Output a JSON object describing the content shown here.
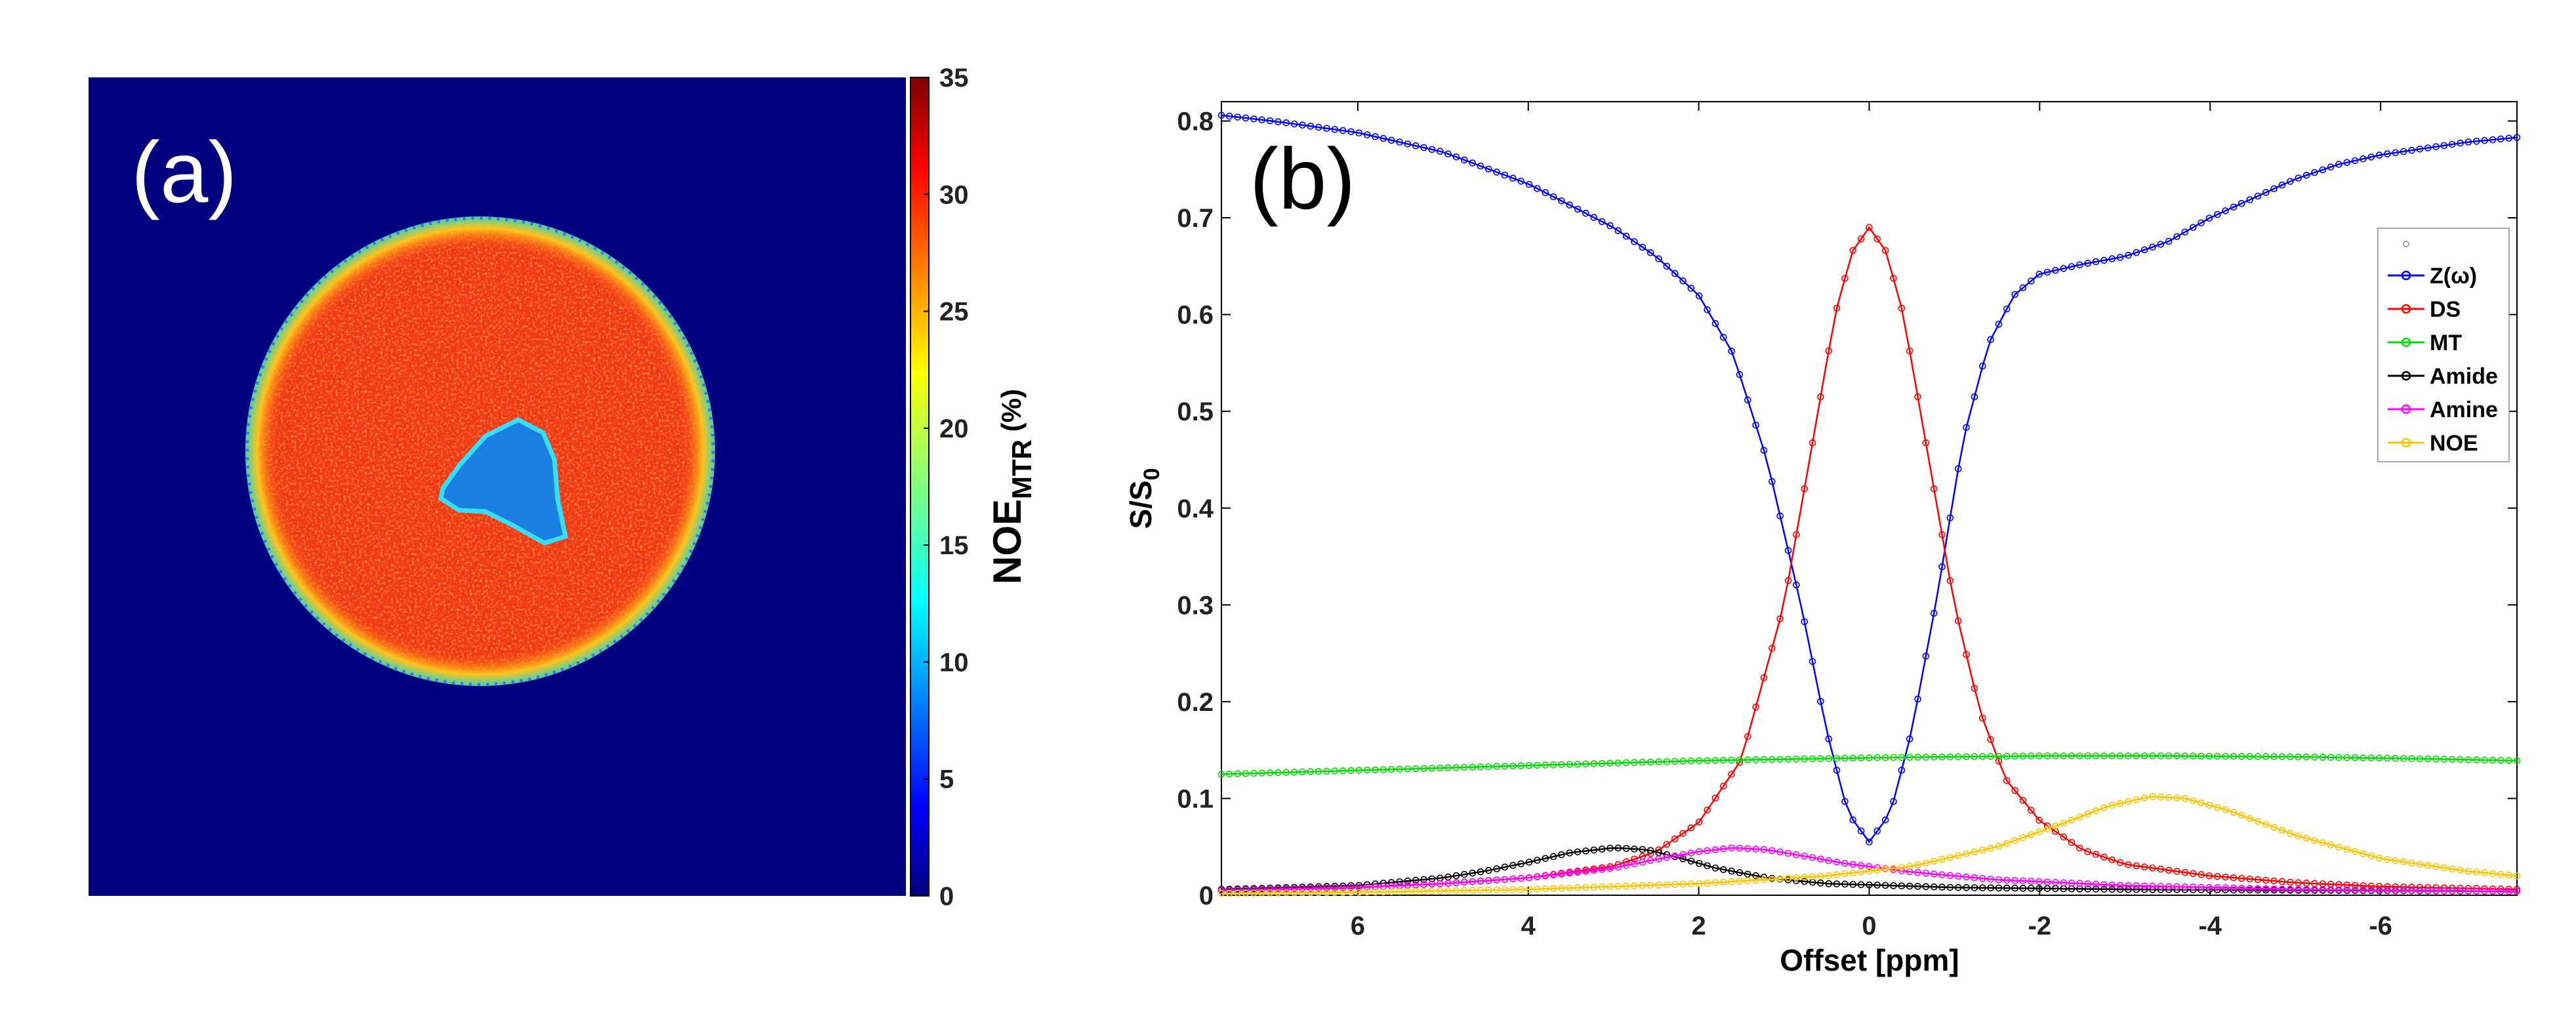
{
  "chart_data": [
    {
      "type": "heatmap",
      "panel_label": "(a)",
      "colorbar": {
        "label_main": "NOE",
        "label_sub": "MTR",
        "label_unit": " (%)",
        "range": [
          0,
          35
        ],
        "ticks": [
          "0",
          "5",
          "10",
          "15",
          "20",
          "25",
          "30",
          "35"
        ],
        "tick_values": [
          0,
          5,
          10,
          15,
          20,
          25,
          30,
          35
        ]
      },
      "regions": {
        "background_value": 0,
        "disk_value": 29,
        "rim_value": 18,
        "center_value": 8
      }
    },
    {
      "type": "line",
      "panel_label": "(b)",
      "xlabel": "Offset [ppm]",
      "ylabel_main": "S/S",
      "ylabel_sub": "0",
      "xlim": [
        7.6,
        -7.6
      ],
      "ylim": [
        0,
        0.82
      ],
      "xticks": [
        "6",
        "4",
        "2",
        "0",
        "-2",
        "-4",
        "-6"
      ],
      "xtick_values": [
        6,
        4,
        2,
        0,
        -2,
        -4,
        -6
      ],
      "yticks": [
        "0",
        "0.1",
        "0.2",
        "0.3",
        "0.4",
        "0.5",
        "0.6",
        "0.7",
        "0.8"
      ],
      "ytick_values": [
        0,
        0.1,
        0.2,
        0.3,
        0.4,
        0.5,
        0.6,
        0.7,
        0.8
      ],
      "legend_position": "top-right",
      "series": [
        {
          "name": "Z(ω)",
          "color": "#0000ff",
          "points": [
            [
              7.6,
              0.806
            ],
            [
              7,
              0.8
            ],
            [
              6,
              0.788
            ],
            [
              5,
              0.768
            ],
            [
              4,
              0.735
            ],
            [
              3,
              0.69
            ],
            [
              2.5,
              0.66
            ],
            [
              2,
              0.62
            ],
            [
              1.6,
              0.56
            ],
            [
              1.2,
              0.45
            ],
            [
              0.8,
              0.3
            ],
            [
              0.5,
              0.17
            ],
            [
              0.25,
              0.085
            ],
            [
              0,
              0.055
            ],
            [
              -0.25,
              0.085
            ],
            [
              -0.5,
              0.17
            ],
            [
              -0.8,
              0.31
            ],
            [
              -1.1,
              0.47
            ],
            [
              -1.4,
              0.57
            ],
            [
              -1.7,
              0.62
            ],
            [
              -2,
              0.642
            ],
            [
              -2.5,
              0.652
            ],
            [
              -3,
              0.66
            ],
            [
              -3.5,
              0.675
            ],
            [
              -4,
              0.7
            ],
            [
              -4.5,
              0.72
            ],
            [
              -5,
              0.74
            ],
            [
              -5.5,
              0.755
            ],
            [
              -6,
              0.765
            ],
            [
              -7,
              0.778
            ],
            [
              -7.6,
              0.783
            ]
          ]
        },
        {
          "name": "DS",
          "color": "#ff0000",
          "points": [
            [
              7.6,
              0.005
            ],
            [
              6,
              0.008
            ],
            [
              5,
              0.012
            ],
            [
              4,
              0.018
            ],
            [
              3,
              0.03
            ],
            [
              2.5,
              0.045
            ],
            [
              2,
              0.075
            ],
            [
              1.5,
              0.14
            ],
            [
              1,
              0.3
            ],
            [
              0.7,
              0.45
            ],
            [
              0.4,
              0.6
            ],
            [
              0.2,
              0.665
            ],
            [
              0,
              0.69
            ],
            [
              -0.2,
              0.665
            ],
            [
              -0.4,
              0.6
            ],
            [
              -0.7,
              0.45
            ],
            [
              -1,
              0.3
            ],
            [
              -1.3,
              0.19
            ],
            [
              -1.6,
              0.12
            ],
            [
              -2,
              0.077
            ],
            [
              -2.5,
              0.047
            ],
            [
              -3,
              0.032
            ],
            [
              -4,
              0.02
            ],
            [
              -5,
              0.013
            ],
            [
              -6,
              0.009
            ],
            [
              -7.6,
              0.006
            ]
          ]
        },
        {
          "name": "MT",
          "color": "#00dd00",
          "points": [
            [
              7.6,
              0.125
            ],
            [
              6,
              0.129
            ],
            [
              4,
              0.134
            ],
            [
              2,
              0.139
            ],
            [
              0,
              0.142
            ],
            [
              -2,
              0.144
            ],
            [
              -3.5,
              0.144
            ],
            [
              -5,
              0.143
            ],
            [
              -6.5,
              0.141
            ],
            [
              -7.6,
              0.139
            ]
          ]
        },
        {
          "name": "Amide",
          "color": "#000000",
          "points": [
            [
              7.6,
              0.006
            ],
            [
              6,
              0.01
            ],
            [
              5,
              0.018
            ],
            [
              4.5,
              0.025
            ],
            [
              4,
              0.034
            ],
            [
              3.5,
              0.044
            ],
            [
              3,
              0.049
            ],
            [
              2.6,
              0.047
            ],
            [
              2.2,
              0.038
            ],
            [
              1.8,
              0.028
            ],
            [
              1.2,
              0.018
            ],
            [
              0.5,
              0.012
            ],
            [
              -1,
              0.008
            ],
            [
              -3,
              0.006
            ],
            [
              -7.6,
              0.004
            ]
          ]
        },
        {
          "name": "Amine",
          "color": "#ff00ff",
          "points": [
            [
              7.6,
              0.005
            ],
            [
              6,
              0.008
            ],
            [
              5,
              0.012
            ],
            [
              4,
              0.018
            ],
            [
              3,
              0.028
            ],
            [
              2.5,
              0.037
            ],
            [
              2,
              0.045
            ],
            [
              1.6,
              0.049
            ],
            [
              1.2,
              0.047
            ],
            [
              0.8,
              0.041
            ],
            [
              0.3,
              0.033
            ],
            [
              -0.5,
              0.024
            ],
            [
              -1.5,
              0.016
            ],
            [
              -3,
              0.01
            ],
            [
              -5,
              0.006
            ],
            [
              -7.6,
              0.004
            ]
          ]
        },
        {
          "name": "NOE",
          "color": "#ffc400",
          "points": [
            [
              7.6,
              0.002
            ],
            [
              6,
              0.003
            ],
            [
              4,
              0.006
            ],
            [
              2,
              0.012
            ],
            [
              0.5,
              0.02
            ],
            [
              -0.5,
              0.03
            ],
            [
              -1.5,
              0.05
            ],
            [
              -2.3,
              0.075
            ],
            [
              -2.8,
              0.092
            ],
            [
              -3.3,
              0.102
            ],
            [
              -3.7,
              0.1
            ],
            [
              -4.2,
              0.088
            ],
            [
              -5,
              0.062
            ],
            [
              -6,
              0.038
            ],
            [
              -7,
              0.025
            ],
            [
              -7.6,
              0.02
            ]
          ]
        }
      ]
    }
  ]
}
